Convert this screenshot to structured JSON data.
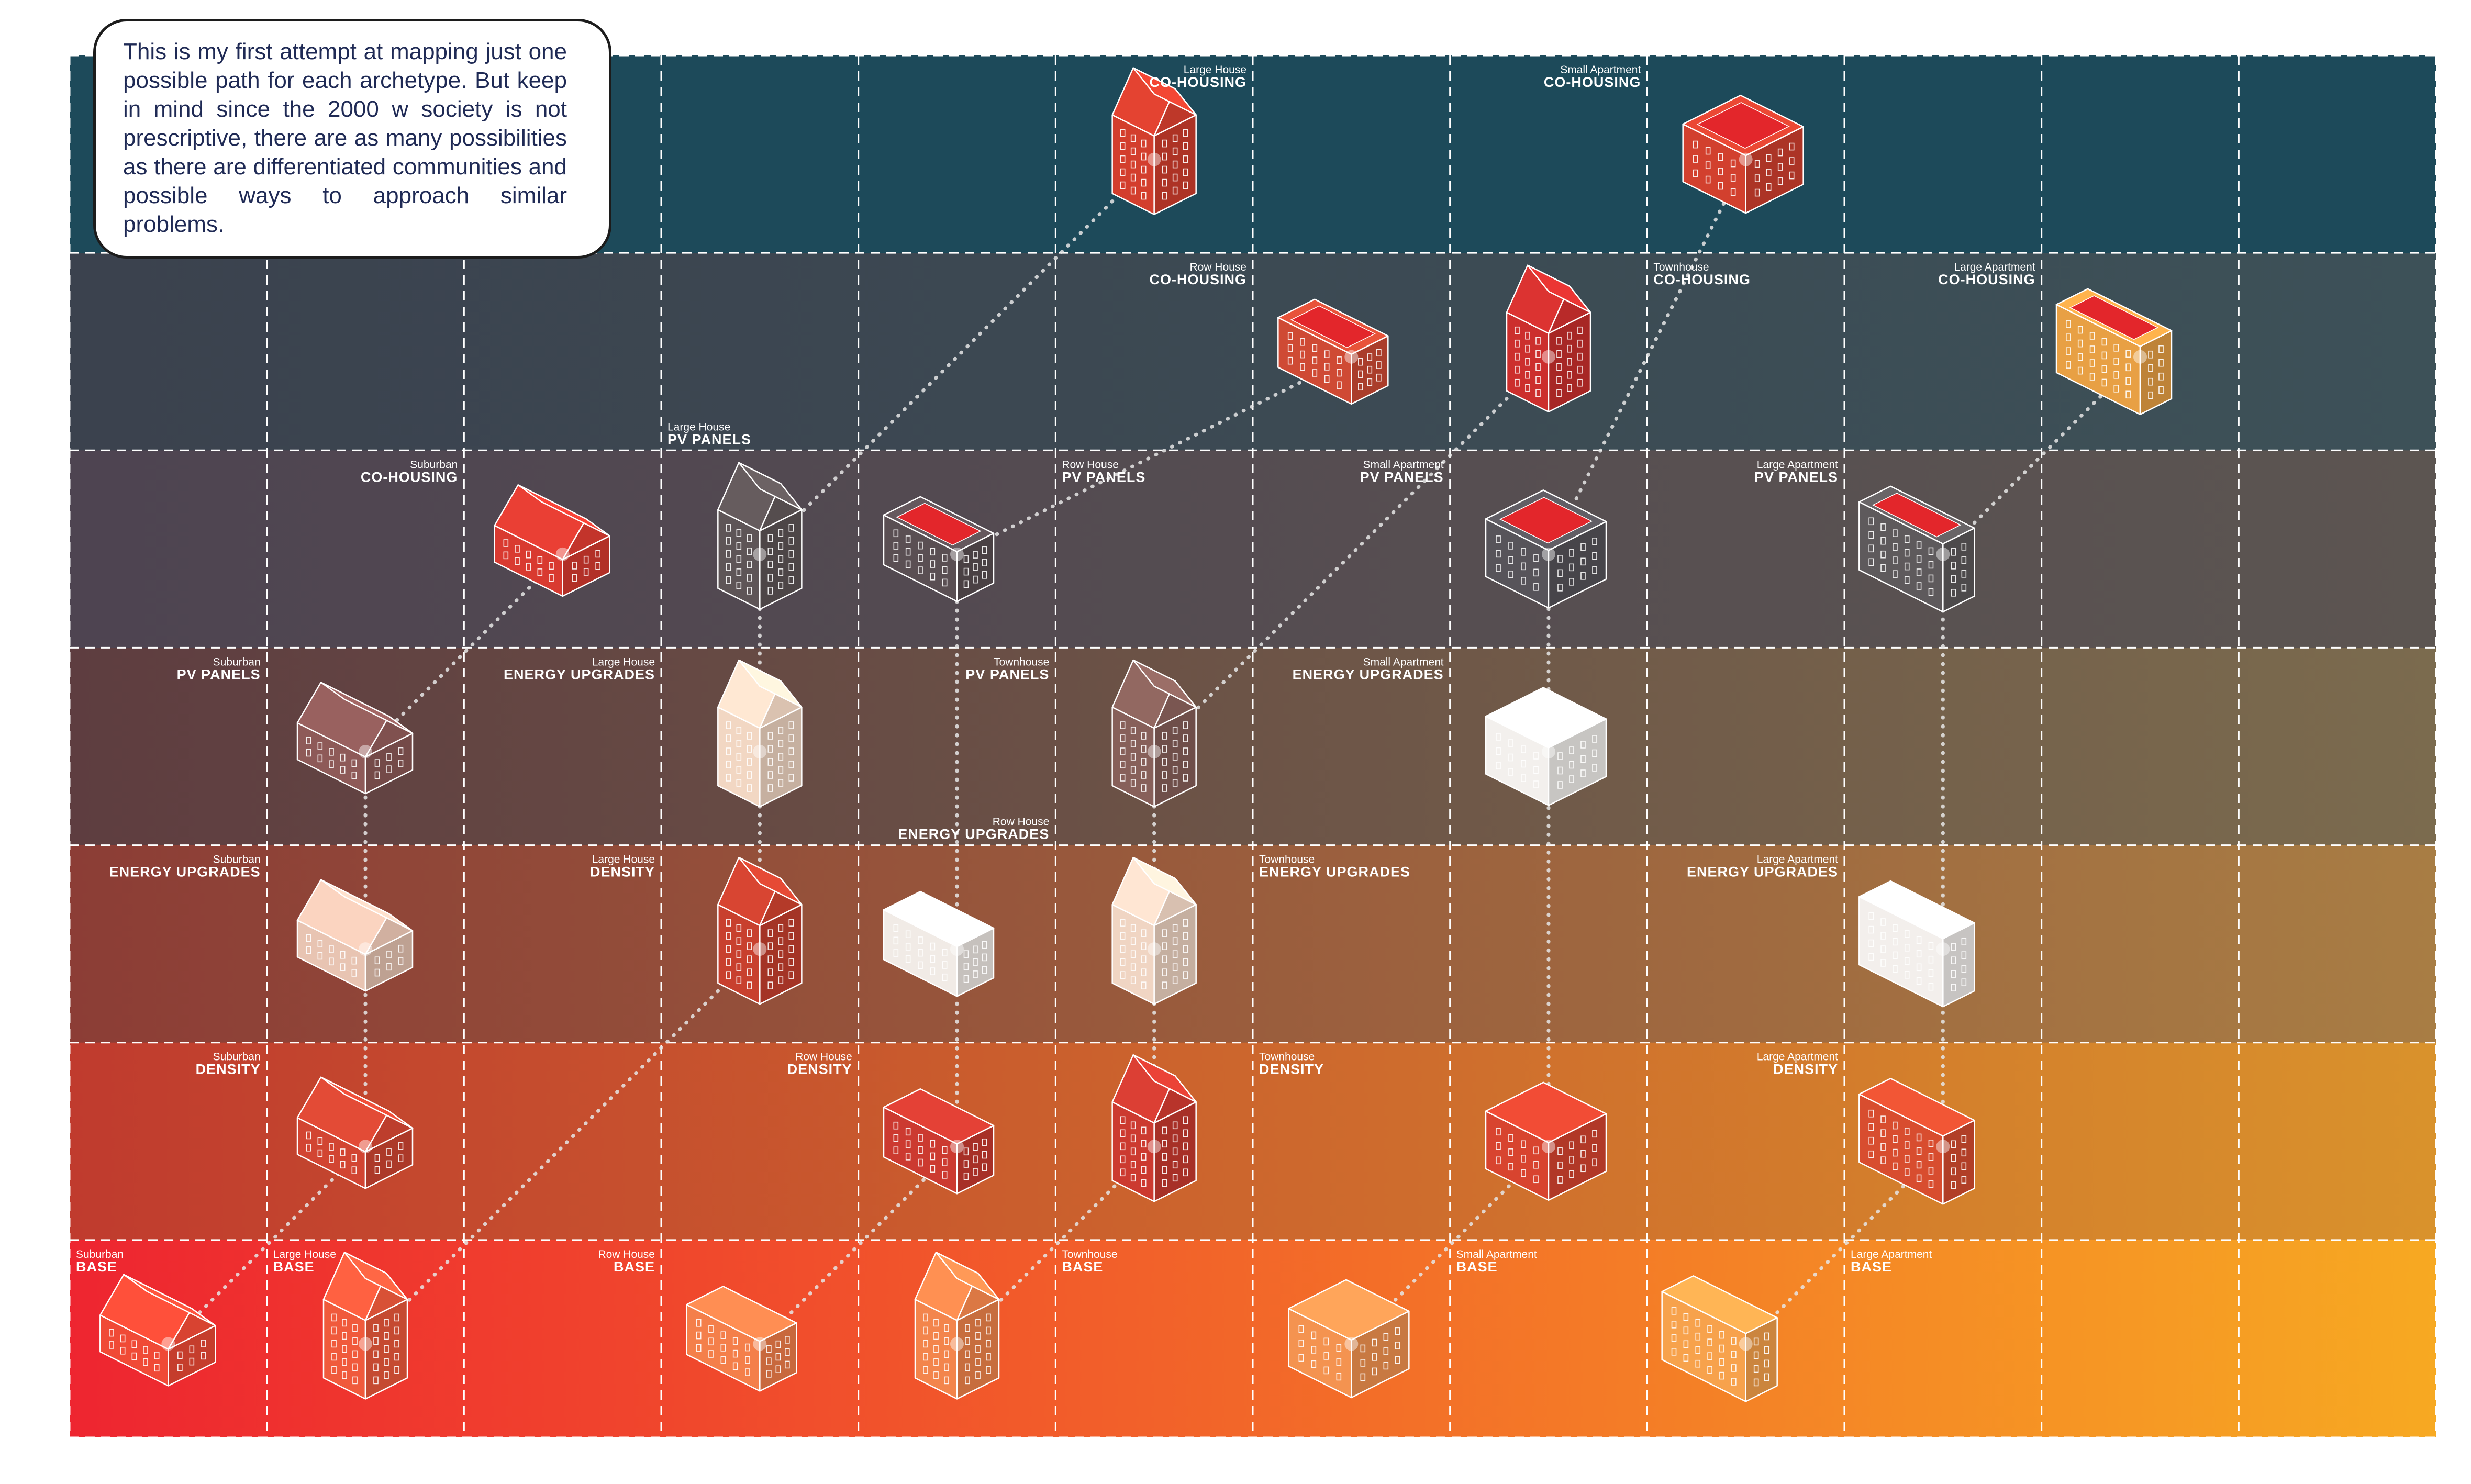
{
  "note": {
    "text": "This is my first attempt at mapping just one possible path for each archetype. But keep in mind since the 2000 w society is not prescriptive, there are as many possibilities as there are differentiated communities and possible ways to approach similar problems."
  },
  "grid": {
    "columns": 12,
    "rows": 7,
    "row_colors_left": [
      "#1d4a5a",
      "#3b424e",
      "#4e4451",
      "#5e3d40",
      "#8c3d36",
      "#c03b2e",
      "#ee2530"
    ],
    "row_colors_right": [
      "#1d4a5a",
      "#3d5158",
      "#5c5551",
      "#7b6b4e",
      "#a87d44",
      "#d9922c",
      "#f7a922"
    ],
    "cell_labels": [
      {
        "row": 0,
        "col": 5,
        "align": "right",
        "small": "Large House",
        "big": "CO-HOUSING"
      },
      {
        "row": 0,
        "col": 7,
        "align": "right",
        "small": "Small Apartment",
        "big": "CO-HOUSING"
      },
      {
        "row": 1,
        "col": 5,
        "align": "right",
        "small": "Row House",
        "big": "CO-HOUSING"
      },
      {
        "row": 1,
        "col": 8,
        "align": "left",
        "small": "Townhouse",
        "big": "CO-HOUSING"
      },
      {
        "row": 1,
        "col": 9,
        "align": "right",
        "small": "Large Apartment",
        "big": "CO-HOUSING"
      },
      {
        "row": 1,
        "col": 3,
        "align": "left",
        "anchor": "bottom",
        "small": "Large House",
        "big": "PV PANELS"
      },
      {
        "row": 2,
        "col": 1,
        "align": "right",
        "small": "Suburban",
        "big": "CO-HOUSING"
      },
      {
        "row": 2,
        "col": 5,
        "align": "left",
        "small": "Row House",
        "big": "PV PANELS"
      },
      {
        "row": 2,
        "col": 6,
        "align": "right",
        "small": "Small Apartment",
        "big": "PV PANELS"
      },
      {
        "row": 2,
        "col": 8,
        "align": "right",
        "small": "Large Apartment",
        "big": "PV PANELS"
      },
      {
        "row": 3,
        "col": 0,
        "align": "right",
        "small": "Suburban",
        "big": "PV PANELS"
      },
      {
        "row": 3,
        "col": 2,
        "align": "right",
        "small": "Large House",
        "big": "ENERGY UPGRADES"
      },
      {
        "row": 3,
        "col": 4,
        "align": "right",
        "small": "Townhouse",
        "big": "PV PANELS"
      },
      {
        "row": 3,
        "col": 6,
        "align": "right",
        "small": "Small Apartment",
        "big": "ENERGY UPGRADES"
      },
      {
        "row": 3,
        "col": 4,
        "align": "right",
        "anchor": "bottom",
        "small": "Row House",
        "big": "ENERGY UPGRADES"
      },
      {
        "row": 4,
        "col": 0,
        "align": "right",
        "small": "Suburban",
        "big": "ENERGY UPGRADES"
      },
      {
        "row": 4,
        "col": 2,
        "align": "right",
        "small": "Large House",
        "big": "DENSITY"
      },
      {
        "row": 4,
        "col": 6,
        "align": "left",
        "small": "Townhouse",
        "big": "ENERGY UPGRADES"
      },
      {
        "row": 4,
        "col": 8,
        "align": "right",
        "small": "Large Apartment",
        "big": "ENERGY UPGRADES"
      },
      {
        "row": 5,
        "col": 0,
        "align": "right",
        "small": "Suburban",
        "big": "DENSITY"
      },
      {
        "row": 5,
        "col": 3,
        "align": "right",
        "small": "Row House",
        "big": "DENSITY"
      },
      {
        "row": 5,
        "col": 6,
        "align": "left",
        "small": "Townhouse",
        "big": "DENSITY"
      },
      {
        "row": 5,
        "col": 8,
        "align": "right",
        "small": "Large Apartment",
        "big": "DENSITY"
      },
      {
        "row": 6,
        "col": 0,
        "align": "left",
        "small": "Suburban",
        "big": "BASE"
      },
      {
        "row": 6,
        "col": 1,
        "align": "left",
        "small": "Large House",
        "big": "BASE"
      },
      {
        "row": 6,
        "col": 2,
        "align": "right",
        "small": "Row House",
        "big": "BASE"
      },
      {
        "row": 6,
        "col": 5,
        "align": "left",
        "small": "Townhouse",
        "big": "BASE"
      },
      {
        "row": 6,
        "col": 7,
        "align": "left",
        "small": "Small Apartment",
        "big": "BASE"
      },
      {
        "row": 6,
        "col": 9,
        "align": "left",
        "small": "Large Apartment",
        "big": "BASE"
      }
    ]
  },
  "buildings": [
    {
      "archetype": "suburban",
      "row": 6,
      "col": 0,
      "kind": "house",
      "color": "#f04a36"
    },
    {
      "archetype": "suburban",
      "row": 5,
      "col": 1,
      "kind": "house",
      "color": "#d24532"
    },
    {
      "archetype": "suburban",
      "row": 4,
      "col": 1,
      "kind": "house",
      "color": "#e8c4b2"
    },
    {
      "archetype": "suburban",
      "row": 3,
      "col": 1,
      "kind": "house",
      "color": "#8e5a58"
    },
    {
      "archetype": "suburban",
      "row": 2,
      "col": 2,
      "kind": "house",
      "color": "#d93a30"
    },
    {
      "archetype": "large-house",
      "row": 6,
      "col": 1,
      "kind": "tall",
      "color": "#f05a3c"
    },
    {
      "archetype": "large-house",
      "row": 4,
      "col": 3,
      "kind": "tall",
      "color": "#c8402e"
    },
    {
      "archetype": "large-house",
      "row": 3,
      "col": 3,
      "kind": "tall",
      "color": "#f2d7c3"
    },
    {
      "archetype": "large-house",
      "row": 2,
      "col": 3,
      "kind": "tall",
      "color": "#5e5557"
    },
    {
      "archetype": "large-house",
      "row": 0,
      "col": 5,
      "kind": "tall",
      "color": "#d33e2d"
    },
    {
      "archetype": "row-house",
      "row": 6,
      "col": 3,
      "kind": "row",
      "color": "#f47f4a"
    },
    {
      "archetype": "row-house",
      "row": 5,
      "col": 4,
      "kind": "row",
      "color": "#cc3a30"
    },
    {
      "archetype": "row-house",
      "row": 4,
      "col": 4,
      "kind": "row",
      "color": "#f1ebe6"
    },
    {
      "archetype": "row-house",
      "row": 2,
      "col": 4,
      "kind": "row",
      "color": "#5a4f53"
    },
    {
      "archetype": "row-house",
      "row": 1,
      "col": 6,
      "kind": "row",
      "color": "#cf4a34"
    },
    {
      "archetype": "townhouse",
      "row": 6,
      "col": 4,
      "kind": "tall",
      "color": "#f3854c"
    },
    {
      "archetype": "townhouse",
      "row": 5,
      "col": 5,
      "kind": "tall",
      "color": "#cc3a30"
    },
    {
      "archetype": "townhouse",
      "row": 4,
      "col": 5,
      "kind": "tall",
      "color": "#f0d5c3"
    },
    {
      "archetype": "townhouse",
      "row": 3,
      "col": 5,
      "kind": "tall",
      "color": "#87605a"
    },
    {
      "archetype": "townhouse",
      "row": 1,
      "col": 7,
      "kind": "tall",
      "color": "#cc2f2d"
    },
    {
      "archetype": "small-apartment",
      "row": 6,
      "col": 6,
      "kind": "block",
      "color": "#f49350"
    },
    {
      "archetype": "small-apartment",
      "row": 5,
      "col": 7,
      "kind": "block",
      "color": "#d8442f"
    },
    {
      "archetype": "small-apartment",
      "row": 3,
      "col": 7,
      "kind": "block",
      "color": "#f3f0ed"
    },
    {
      "archetype": "small-apartment",
      "row": 2,
      "col": 7,
      "kind": "block",
      "color": "#57545a"
    },
    {
      "archetype": "small-apartment",
      "row": 0,
      "col": 8,
      "kind": "block",
      "color": "#d2402e"
    },
    {
      "archetype": "large-apartment",
      "row": 6,
      "col": 8,
      "kind": "long",
      "color": "#f7a24c"
    },
    {
      "archetype": "large-apartment",
      "row": 5,
      "col": 9,
      "kind": "long",
      "color": "#d84d2f"
    },
    {
      "archetype": "large-apartment",
      "row": 4,
      "col": 9,
      "kind": "long",
      "color": "#f3efec"
    },
    {
      "archetype": "large-apartment",
      "row": 2,
      "col": 9,
      "kind": "long",
      "color": "#5e5a5c"
    },
    {
      "archetype": "large-apartment",
      "row": 1,
      "col": 10,
      "kind": "long",
      "color": "#e8a044"
    }
  ],
  "colors": {
    "connector": "#e6e6e6",
    "grid_line": "#ffffff",
    "roof_accent": "#e3262b",
    "outline": "#ffffff"
  }
}
